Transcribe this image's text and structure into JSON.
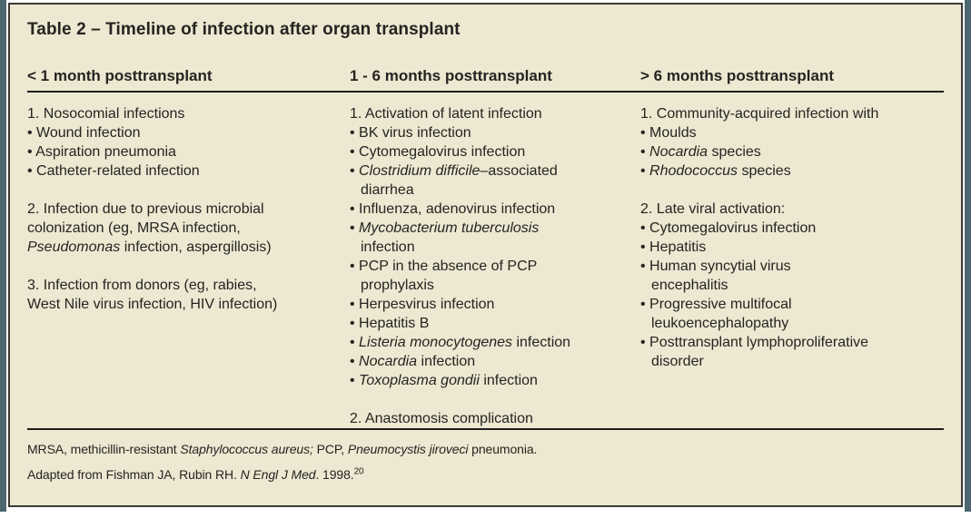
{
  "colors": {
    "frame_teal": "#4d6771",
    "panel_bg": "#ece8d1",
    "panel_border": "#3c3a34",
    "rule": "#1f1d1b",
    "text": "#262321"
  },
  "title": "Table 2 – Timeline of infection after organ transplant",
  "columns": [
    {
      "header": "< 1 month posttransplant",
      "items": [
        {
          "marker": "1.",
          "segments": [
            {
              "t": "Nosocomial infections"
            }
          ]
        },
        {
          "marker": "•",
          "segments": [
            {
              "t": "Wound infection"
            }
          ]
        },
        {
          "marker": "•",
          "segments": [
            {
              "t": "Aspiration pneumonia"
            }
          ]
        },
        {
          "marker": "•",
          "segments": [
            {
              "t": "Catheter-related infection"
            }
          ]
        },
        {
          "spacer": true
        },
        {
          "marker": "2.",
          "segments": [
            {
              "t": "Infection due to previous microbial"
            },
            {
              "br": true
            },
            {
              "t": "colonization (eg, MRSA infection,"
            },
            {
              "br": true
            },
            {
              "t": "Pseudomonas",
              "i": true
            },
            {
              "t": " infection, aspergillosis)"
            }
          ]
        },
        {
          "spacer": true
        },
        {
          "marker": "3.",
          "segments": [
            {
              "t": "Infection from donors (eg, rabies,"
            },
            {
              "br": true
            },
            {
              "t": "West Nile virus infection, HIV infection)"
            }
          ]
        }
      ]
    },
    {
      "header": "1 - 6 months posttransplant",
      "items": [
        {
          "marker": "1.",
          "segments": [
            {
              "t": "Activation of latent infection"
            }
          ]
        },
        {
          "marker": "•",
          "segments": [
            {
              "t": "BK virus infection"
            }
          ]
        },
        {
          "marker": "•",
          "segments": [
            {
              "t": "Cytomegalovirus infection"
            }
          ]
        },
        {
          "marker": "•",
          "segments": [
            {
              "t": "Clostridium difficile",
              "i": true
            },
            {
              "t": "–associated"
            },
            {
              "br": true
            },
            {
              "t": "diarrhea"
            }
          ]
        },
        {
          "marker": "•",
          "segments": [
            {
              "t": "Influenza, adenovirus infection"
            }
          ]
        },
        {
          "marker": "•",
          "segments": [
            {
              "t": "Mycobacterium tuberculosis",
              "i": true
            },
            {
              "br": true
            },
            {
              "t": "infection"
            }
          ]
        },
        {
          "marker": "•",
          "segments": [
            {
              "t": "PCP in the absence of PCP"
            },
            {
              "br": true
            },
            {
              "t": "prophylaxis"
            }
          ]
        },
        {
          "marker": "•",
          "segments": [
            {
              "t": "Herpesvirus infection"
            }
          ]
        },
        {
          "marker": "•",
          "segments": [
            {
              "t": "Hepatitis B"
            }
          ]
        },
        {
          "marker": "•",
          "segments": [
            {
              "t": "Listeria monocytogenes",
              "i": true
            },
            {
              "t": " infection"
            }
          ]
        },
        {
          "marker": "•",
          "segments": [
            {
              "t": "Nocardia",
              "i": true
            },
            {
              "t": " infection"
            }
          ]
        },
        {
          "marker": "•",
          "segments": [
            {
              "t": "Toxoplasma gondii",
              "i": true
            },
            {
              "t": " infection"
            }
          ]
        },
        {
          "spacer": true
        },
        {
          "marker": "2.",
          "segments": [
            {
              "t": "Anastomosis complication"
            }
          ]
        }
      ]
    },
    {
      "header": "> 6 months posttransplant",
      "items": [
        {
          "marker": "1.",
          "segments": [
            {
              "t": "Community-acquired infection with"
            }
          ]
        },
        {
          "marker": "•",
          "segments": [
            {
              "t": "Moulds"
            }
          ]
        },
        {
          "marker": "•",
          "segments": [
            {
              "t": "Nocardia",
              "i": true
            },
            {
              "t": " species"
            }
          ]
        },
        {
          "marker": "•",
          "segments": [
            {
              "t": "Rhodococcus",
              "i": true
            },
            {
              "t": " species"
            }
          ]
        },
        {
          "spacer": true
        },
        {
          "marker": "2.",
          "segments": [
            {
              "t": "Late viral activation:"
            }
          ]
        },
        {
          "marker": "•",
          "segments": [
            {
              "t": "Cytomegalovirus infection"
            }
          ]
        },
        {
          "marker": "•",
          "segments": [
            {
              "t": "Hepatitis"
            }
          ]
        },
        {
          "marker": "•",
          "segments": [
            {
              "t": "Human syncytial virus"
            },
            {
              "br": true
            },
            {
              "t": "encephalitis"
            }
          ]
        },
        {
          "marker": "•",
          "segments": [
            {
              "t": "Progressive multifocal"
            },
            {
              "br": true
            },
            {
              "t": "leukoencephalopathy"
            }
          ]
        },
        {
          "marker": "•",
          "segments": [
            {
              "t": "Posttransplant lymphoproliferative"
            },
            {
              "br": true
            },
            {
              "t": "disorder"
            }
          ]
        }
      ]
    }
  ],
  "footnotes": [
    {
      "segments": [
        {
          "t": "MRSA, methicillin-resistant "
        },
        {
          "t": "Staphylococcus aureus;",
          "i": true
        },
        {
          "t": " PCP, "
        },
        {
          "t": "Pneumocystis jiroveci",
          "i": true
        },
        {
          "t": " pneumonia."
        }
      ]
    },
    {
      "segments": [
        {
          "t": "Adapted from Fishman JA, Rubin RH. "
        },
        {
          "t": "N Engl J Med",
          "i": true
        },
        {
          "t": ". 1998."
        },
        {
          "t": "20",
          "sup": true
        }
      ]
    }
  ]
}
